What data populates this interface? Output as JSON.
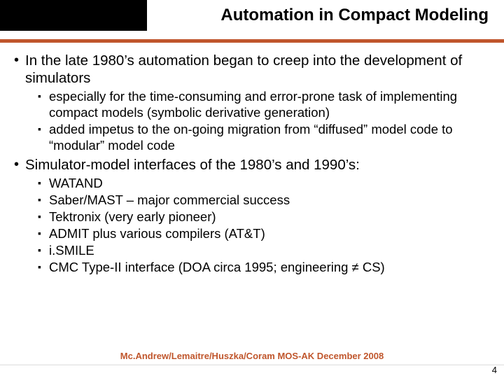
{
  "colors": {
    "accent": "#c0562c",
    "blackbox": "#000000",
    "text": "#000000",
    "bg": "#ffffff"
  },
  "header": {
    "title": "Automation in Compact Modeling"
  },
  "bullets": [
    {
      "text": "In the late 1980’s automation began to creep into the development of simulators",
      "sub": [
        "especially for the time-consuming and error-prone task of implementing compact models (symbolic derivative generation)",
        "added impetus to the on-going migration from “diffused” model code to “modular” model code"
      ]
    },
    {
      "text": "Simulator-model interfaces of the 1980’s and 1990’s:",
      "sub": [
        "WATAND",
        "Saber/MAST – major commercial success",
        "Tektronix (very early pioneer)",
        "ADMIT plus various compilers (AT&T)",
        "i.SMILE",
        "CMC Type-II interface (DOA circa 1995; engineering ≠ CS)"
      ]
    }
  ],
  "footer": {
    "text": "Mc.Andrew/Lemaitre/Huszka/Coram MOS-AK December 2008",
    "page": "4"
  },
  "glyphs": {
    "l1_bullet": "•",
    "l2_bullet": "▪"
  }
}
